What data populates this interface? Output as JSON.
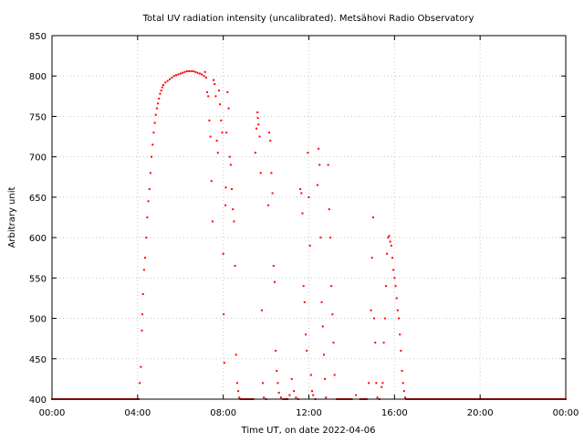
{
  "chart_data": {
    "type": "scatter",
    "title": "Total UV radiation intensity (uncalibrated). Metsähovi Radio Observatory",
    "xlabel": "Time UT, on date 2022-04-06",
    "ylabel": "Arbitrary unit",
    "xlim": [
      0,
      24
    ],
    "ylim": [
      400,
      850
    ],
    "x_ticks": [
      0,
      4,
      8,
      12,
      16,
      20,
      24
    ],
    "x_tick_labels": [
      "00:00",
      "04:00",
      "08:00",
      "12:00",
      "16:00",
      "20:00",
      "00:00"
    ],
    "y_ticks": [
      400,
      450,
      500,
      550,
      600,
      650,
      700,
      750,
      800,
      850
    ],
    "y_tick_labels": [
      "400",
      "450",
      "500",
      "550",
      "600",
      "650",
      "700",
      "750",
      "800",
      "850"
    ],
    "grid": true,
    "colors": {
      "series": "#ff0000",
      "grid": "#c8c8c8"
    },
    "series": [
      {
        "x_unit": "hours UT",
        "points": [
          [
            0.0,
            400
          ],
          [
            0.5,
            400
          ],
          [
            1.0,
            400
          ],
          [
            1.5,
            400
          ],
          [
            2.0,
            400
          ],
          [
            2.5,
            400
          ],
          [
            3.0,
            400
          ],
          [
            3.5,
            400
          ],
          [
            3.9,
            400
          ],
          [
            4.05,
            400
          ],
          [
            4.1,
            420
          ],
          [
            4.15,
            440
          ],
          [
            4.2,
            485
          ],
          [
            4.22,
            505
          ],
          [
            4.25,
            530
          ],
          [
            4.3,
            560
          ],
          [
            4.35,
            575
          ],
          [
            4.4,
            600
          ],
          [
            4.45,
            625
          ],
          [
            4.5,
            645
          ],
          [
            4.55,
            660
          ],
          [
            4.6,
            680
          ],
          [
            4.65,
            700
          ],
          [
            4.7,
            715
          ],
          [
            4.75,
            730
          ],
          [
            4.8,
            742
          ],
          [
            4.85,
            752
          ],
          [
            4.9,
            760
          ],
          [
            4.95,
            766
          ],
          [
            5.0,
            772
          ],
          [
            5.05,
            778
          ],
          [
            5.1,
            782
          ],
          [
            5.15,
            786
          ],
          [
            5.2,
            789
          ],
          [
            5.3,
            792
          ],
          [
            5.4,
            794
          ],
          [
            5.5,
            796
          ],
          [
            5.6,
            798
          ],
          [
            5.7,
            800
          ],
          [
            5.8,
            801
          ],
          [
            5.9,
            802
          ],
          [
            6.0,
            803
          ],
          [
            6.1,
            804
          ],
          [
            6.2,
            805
          ],
          [
            6.3,
            806
          ],
          [
            6.4,
            806
          ],
          [
            6.5,
            806
          ],
          [
            6.6,
            806
          ],
          [
            6.7,
            805
          ],
          [
            6.8,
            804
          ],
          [
            6.9,
            803
          ],
          [
            7.0,
            802
          ],
          [
            7.1,
            800
          ],
          [
            7.15,
            805
          ],
          [
            7.2,
            798
          ],
          [
            7.25,
            780
          ],
          [
            7.3,
            775
          ],
          [
            7.35,
            745
          ],
          [
            7.4,
            725
          ],
          [
            7.45,
            670
          ],
          [
            7.5,
            620
          ],
          [
            7.55,
            795
          ],
          [
            7.6,
            790
          ],
          [
            7.65,
            775
          ],
          [
            7.7,
            720
          ],
          [
            7.75,
            705
          ],
          [
            7.8,
            782
          ],
          [
            7.85,
            765
          ],
          [
            7.9,
            745
          ],
          [
            7.95,
            730
          ],
          [
            8.0,
            580
          ],
          [
            8.02,
            505
          ],
          [
            8.05,
            445
          ],
          [
            8.1,
            640
          ],
          [
            8.12,
            662
          ],
          [
            8.15,
            730
          ],
          [
            8.2,
            780
          ],
          [
            8.25,
            760
          ],
          [
            8.3,
            700
          ],
          [
            8.35,
            690
          ],
          [
            8.4,
            660
          ],
          [
            8.45,
            635
          ],
          [
            8.5,
            620
          ],
          [
            8.55,
            565
          ],
          [
            8.6,
            455
          ],
          [
            8.65,
            420
          ],
          [
            8.7,
            410
          ],
          [
            8.75,
            402
          ],
          [
            8.8,
            400
          ],
          [
            9.0,
            400
          ],
          [
            9.2,
            400
          ],
          [
            9.4,
            400
          ],
          [
            9.5,
            705
          ],
          [
            9.55,
            735
          ],
          [
            9.6,
            755
          ],
          [
            9.62,
            748
          ],
          [
            9.65,
            740
          ],
          [
            9.7,
            725
          ],
          [
            9.75,
            680
          ],
          [
            9.8,
            510
          ],
          [
            9.85,
            420
          ],
          [
            9.9,
            402
          ],
          [
            10.0,
            400
          ],
          [
            10.1,
            640
          ],
          [
            10.15,
            730
          ],
          [
            10.2,
            720
          ],
          [
            10.25,
            680
          ],
          [
            10.3,
            655
          ],
          [
            10.35,
            565
          ],
          [
            10.4,
            545
          ],
          [
            10.45,
            460
          ],
          [
            10.5,
            435
          ],
          [
            10.55,
            420
          ],
          [
            10.6,
            408
          ],
          [
            10.7,
            402
          ],
          [
            10.8,
            400
          ],
          [
            11.0,
            400
          ],
          [
            11.1,
            405
          ],
          [
            11.2,
            425
          ],
          [
            11.3,
            410
          ],
          [
            11.4,
            402
          ],
          [
            11.5,
            400
          ],
          [
            11.6,
            660
          ],
          [
            11.65,
            655
          ],
          [
            11.7,
            630
          ],
          [
            11.75,
            540
          ],
          [
            11.8,
            520
          ],
          [
            11.85,
            480
          ],
          [
            11.9,
            460
          ],
          [
            11.95,
            705
          ],
          [
            12.0,
            650
          ],
          [
            12.05,
            590
          ],
          [
            12.1,
            430
          ],
          [
            12.15,
            410
          ],
          [
            12.2,
            405
          ],
          [
            12.3,
            400
          ],
          [
            12.4,
            665
          ],
          [
            12.45,
            710
          ],
          [
            12.5,
            690
          ],
          [
            12.55,
            600
          ],
          [
            12.6,
            520
          ],
          [
            12.65,
            490
          ],
          [
            12.7,
            455
          ],
          [
            12.75,
            425
          ],
          [
            12.8,
            402
          ],
          [
            12.9,
            690
          ],
          [
            12.95,
            635
          ],
          [
            13.0,
            600
          ],
          [
            13.05,
            540
          ],
          [
            13.1,
            505
          ],
          [
            13.15,
            470
          ],
          [
            13.2,
            430
          ],
          [
            13.3,
            400
          ],
          [
            13.5,
            400
          ],
          [
            13.7,
            400
          ],
          [
            14.0,
            400
          ],
          [
            14.2,
            405
          ],
          [
            14.4,
            400
          ],
          [
            14.6,
            400
          ],
          [
            14.7,
            400
          ],
          [
            14.8,
            420
          ],
          [
            14.9,
            510
          ],
          [
            14.95,
            575
          ],
          [
            15.0,
            625
          ],
          [
            15.05,
            500
          ],
          [
            15.1,
            470
          ],
          [
            15.15,
            420
          ],
          [
            15.2,
            402
          ],
          [
            15.3,
            400
          ],
          [
            15.4,
            415
          ],
          [
            15.45,
            420
          ],
          [
            15.5,
            470
          ],
          [
            15.55,
            500
          ],
          [
            15.6,
            540
          ],
          [
            15.65,
            580
          ],
          [
            15.7,
            600
          ],
          [
            15.75,
            602
          ],
          [
            15.8,
            595
          ],
          [
            15.85,
            590
          ],
          [
            15.9,
            575
          ],
          [
            15.95,
            560
          ],
          [
            16.0,
            550
          ],
          [
            16.05,
            540
          ],
          [
            16.1,
            525
          ],
          [
            16.15,
            510
          ],
          [
            16.2,
            500
          ],
          [
            16.25,
            480
          ],
          [
            16.3,
            460
          ],
          [
            16.35,
            435
          ],
          [
            16.4,
            420
          ],
          [
            16.45,
            410
          ],
          [
            16.5,
            402
          ],
          [
            16.55,
            400
          ],
          [
            17.0,
            400
          ],
          [
            17.5,
            400
          ],
          [
            18.0,
            400
          ],
          [
            18.5,
            400
          ],
          [
            19.0,
            400
          ],
          [
            19.5,
            400
          ],
          [
            20.0,
            400
          ],
          [
            20.5,
            400
          ],
          [
            21.0,
            400
          ],
          [
            21.5,
            400
          ],
          [
            22.0,
            400
          ],
          [
            22.5,
            400
          ],
          [
            23.0,
            400
          ],
          [
            23.5,
            400
          ],
          [
            24.0,
            400
          ]
        ]
      }
    ]
  }
}
